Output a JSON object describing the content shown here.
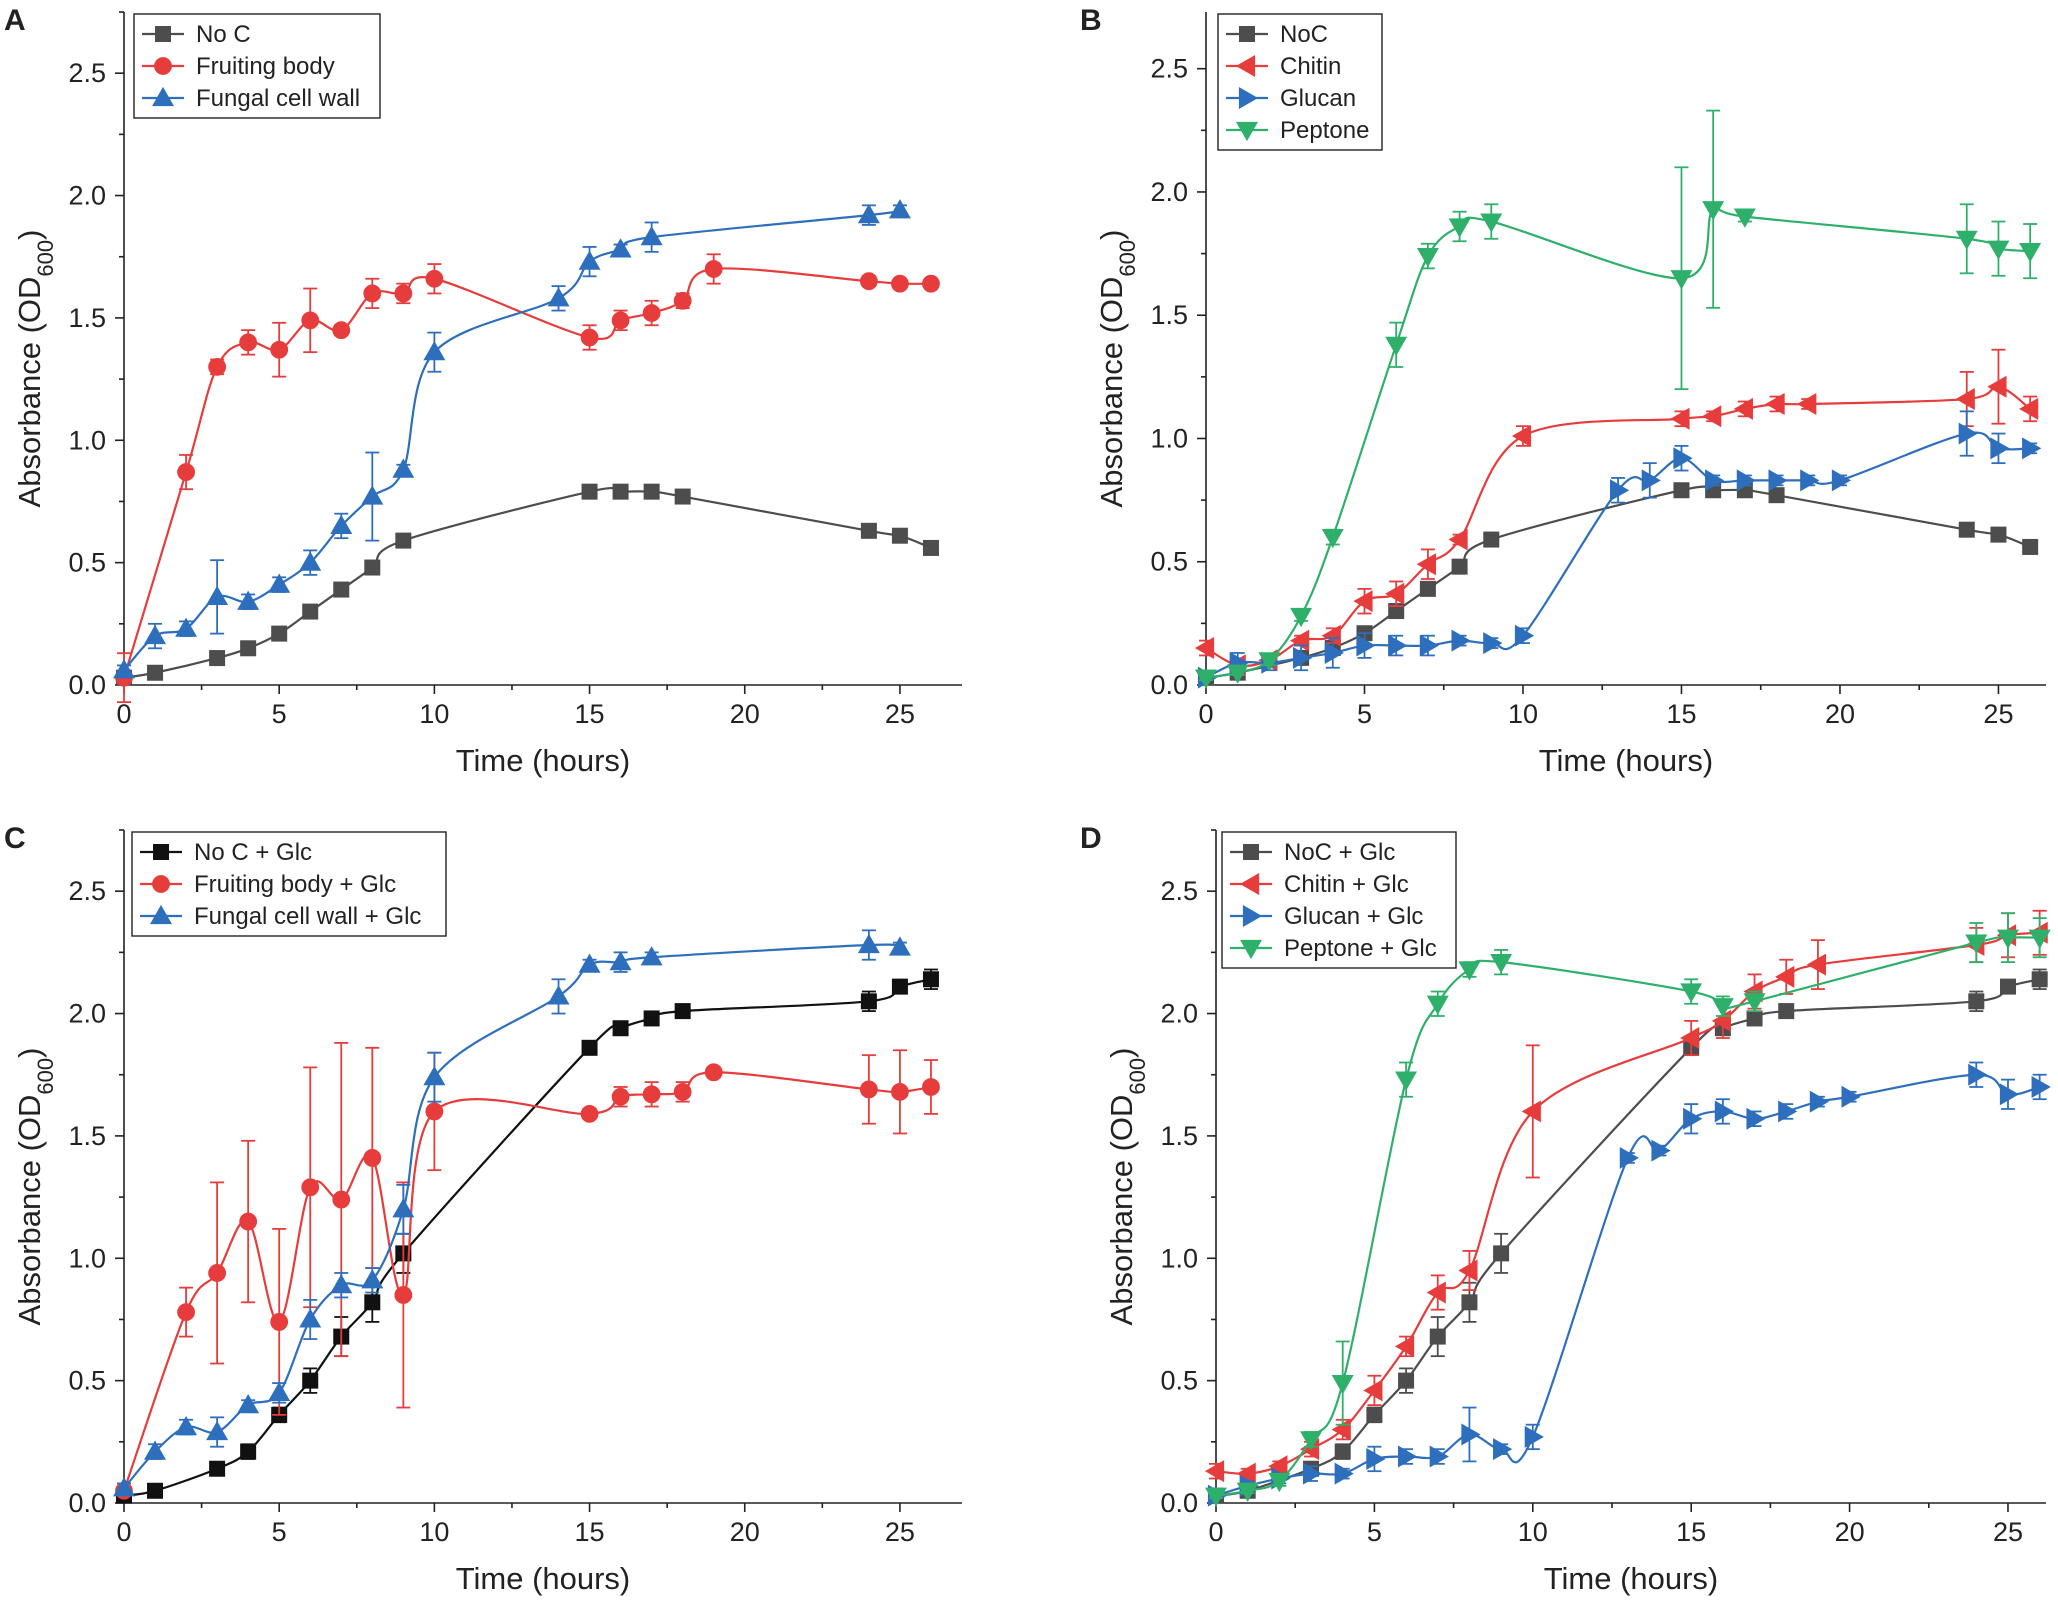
{
  "chart_data": [
    {
      "type": "line",
      "panel": "A",
      "xlabel": "Time (hours)",
      "ylabel": "Absorbance (OD",
      "ylabel_sub": "600",
      "ylabel_close": ")",
      "xlim": [
        0,
        27
      ],
      "ylim": [
        0,
        2.75
      ],
      "x_ticks": [
        0,
        5,
        10,
        15,
        20,
        25
      ],
      "y_ticks": [
        0.0,
        0.5,
        1.0,
        1.5,
        2.0,
        2.5
      ],
      "x_tick_labels": [
        "0",
        "5",
        "10",
        "15",
        "20",
        "25"
      ],
      "y_tick_labels": [
        "0.0",
        "0.5",
        "1.0",
        "1.5",
        "2.0",
        "2.5"
      ],
      "legend": [
        "No C",
        "Fruiting body",
        "Fungal cell wall"
      ],
      "series": [
        {
          "name": "No C",
          "color": "#4d4d4d",
          "marker": "square",
          "x": [
            0,
            1,
            3,
            4,
            5,
            6,
            7,
            8,
            9,
            15,
            16,
            17,
            18,
            24,
            25,
            26
          ],
          "y": [
            0.03,
            0.05,
            0.11,
            0.15,
            0.21,
            0.3,
            0.39,
            0.48,
            0.59,
            0.79,
            0.79,
            0.79,
            0.77,
            0.63,
            0.61,
            0.56
          ],
          "err": [
            0.01,
            0.01,
            0.01,
            0.01,
            0.01,
            0.01,
            0.01,
            0.01,
            0.01,
            0.01,
            0.01,
            0.01,
            0.01,
            0.01,
            0.01,
            0.01
          ]
        },
        {
          "name": "Fruiting body",
          "color": "#e63c3c",
          "marker": "circle",
          "x": [
            0,
            2,
            3,
            4,
            5,
            6,
            7,
            8,
            9,
            10,
            15,
            16,
            17,
            18,
            19,
            24,
            25,
            26
          ],
          "y": [
            0.03,
            0.87,
            1.3,
            1.4,
            1.37,
            1.49,
            1.45,
            1.6,
            1.6,
            1.66,
            1.42,
            1.49,
            1.52,
            1.57,
            1.7,
            1.65,
            1.64,
            1.64
          ],
          "err": [
            0.1,
            0.07,
            0.03,
            0.05,
            0.11,
            0.13,
            0.02,
            0.06,
            0.04,
            0.06,
            0.05,
            0.04,
            0.05,
            0.03,
            0.06,
            0.02,
            0.01,
            0.02
          ]
        },
        {
          "name": "Fungal cell wall",
          "color": "#2e6fbd",
          "marker": "triangle-up",
          "x": [
            0,
            1,
            2,
            3,
            4,
            5,
            6,
            7,
            8,
            9,
            10,
            14,
            15,
            16,
            17,
            24,
            25
          ],
          "y": [
            0.06,
            0.2,
            0.23,
            0.36,
            0.34,
            0.41,
            0.5,
            0.65,
            0.77,
            0.88,
            1.36,
            1.58,
            1.73,
            1.78,
            1.83,
            1.92,
            1.94
          ],
          "err": [
            0.02,
            0.05,
            0.03,
            0.15,
            0.03,
            0.03,
            0.05,
            0.05,
            0.18,
            0.02,
            0.08,
            0.05,
            0.06,
            0.02,
            0.06,
            0.04,
            0.02
          ]
        }
      ]
    },
    {
      "type": "line",
      "panel": "B",
      "xlabel": "Time (hours)",
      "ylabel": "Absorbance (OD",
      "ylabel_sub": "600",
      "ylabel_close": ")",
      "xlim": [
        0,
        26.5
      ],
      "ylim": [
        0,
        2.73
      ],
      "x_ticks": [
        0,
        5,
        10,
        15,
        20,
        25
      ],
      "y_ticks": [
        0.0,
        0.5,
        1.0,
        1.5,
        2.0,
        2.5
      ],
      "x_tick_labels": [
        "0",
        "5",
        "10",
        "15",
        "20",
        "25"
      ],
      "y_tick_labels": [
        "0.0",
        "0.5",
        "1.0",
        "1.5",
        "2.0",
        "2.5"
      ],
      "legend": [
        "NoC",
        "Chitin",
        "Glucan",
        "Peptone"
      ],
      "series": [
        {
          "name": "NoC",
          "color": "#4d4d4d",
          "marker": "square",
          "x": [
            0,
            1,
            3,
            4,
            5,
            6,
            7,
            8,
            9,
            15,
            16,
            17,
            18,
            24,
            25,
            26
          ],
          "y": [
            0.03,
            0.05,
            0.11,
            0.15,
            0.21,
            0.3,
            0.39,
            0.48,
            0.59,
            0.79,
            0.79,
            0.79,
            0.77,
            0.63,
            0.61,
            0.56
          ],
          "err": [
            0.01,
            0.01,
            0.01,
            0.01,
            0.01,
            0.01,
            0.01,
            0.01,
            0.01,
            0.01,
            0.01,
            0.01,
            0.01,
            0.01,
            0.01,
            0.01
          ]
        },
        {
          "name": "Chitin",
          "color": "#e63c3c",
          "marker": "triangle-left",
          "x": [
            0,
            1,
            2,
            3,
            4,
            5,
            6,
            7,
            8,
            10,
            15,
            16,
            17,
            18,
            19,
            24,
            25,
            26
          ],
          "y": [
            0.15,
            0.08,
            0.1,
            0.18,
            0.2,
            0.34,
            0.37,
            0.49,
            0.59,
            1.01,
            1.08,
            1.09,
            1.12,
            1.14,
            1.14,
            1.16,
            1.21,
            1.12
          ],
          "err": [
            0.03,
            0.02,
            0.02,
            0.02,
            0.03,
            0.05,
            0.05,
            0.06,
            0.02,
            0.04,
            0.03,
            0.02,
            0.03,
            0.03,
            0.02,
            0.11,
            0.15,
            0.05
          ]
        },
        {
          "name": "Glucan",
          "color": "#2e6fbd",
          "marker": "triangle-right",
          "x": [
            0,
            1,
            2,
            3,
            4,
            5,
            6,
            7,
            8,
            9,
            10,
            13,
            14,
            15,
            16,
            17,
            18,
            19,
            20,
            24,
            25,
            26
          ],
          "y": [
            0.03,
            0.09,
            0.09,
            0.11,
            0.13,
            0.16,
            0.16,
            0.16,
            0.18,
            0.17,
            0.2,
            0.79,
            0.83,
            0.92,
            0.83,
            0.83,
            0.83,
            0.83,
            0.83,
            1.02,
            0.96,
            0.96
          ],
          "err": [
            0.01,
            0.04,
            0.03,
            0.05,
            0.06,
            0.05,
            0.04,
            0.04,
            0.02,
            0.02,
            0.03,
            0.05,
            0.07,
            0.05,
            0.02,
            0.02,
            0.02,
            0.02,
            0.02,
            0.09,
            0.06,
            0.02
          ]
        },
        {
          "name": "Peptone",
          "color": "#2eb06a",
          "marker": "triangle-down",
          "x": [
            0,
            1,
            2,
            3,
            4,
            6,
            7,
            8,
            9,
            15,
            16,
            17,
            24,
            25,
            26
          ],
          "y": [
            0.03,
            0.05,
            0.1,
            0.28,
            0.6,
            1.38,
            1.74,
            1.86,
            1.88,
            1.65,
            1.93,
            1.9,
            1.81,
            1.77,
            1.76
          ],
          "err": [
            0.01,
            0.01,
            0.02,
            0.02,
            0.03,
            0.09,
            0.05,
            0.06,
            0.07,
            0.45,
            0.4,
            0.02,
            0.14,
            0.11,
            0.11
          ]
        }
      ]
    },
    {
      "type": "line",
      "panel": "C",
      "xlabel": "Time (hours)",
      "ylabel": "Absorbance (OD",
      "ylabel_sub": "600",
      "ylabel_close": ")",
      "xlim": [
        0,
        27
      ],
      "ylim": [
        0,
        2.75
      ],
      "x_ticks": [
        0,
        5,
        10,
        15,
        20,
        25
      ],
      "y_ticks": [
        0.0,
        0.5,
        1.0,
        1.5,
        2.0,
        2.5
      ],
      "x_tick_labels": [
        "0",
        "5",
        "10",
        "15",
        "20",
        "25"
      ],
      "y_tick_labels": [
        "0.0",
        "0.5",
        "1.0",
        "1.5",
        "2.0",
        "2.5"
      ],
      "legend": [
        "No C + Glc",
        "Fruiting body + Glc",
        "Fungal cell wall + Glc"
      ],
      "series": [
        {
          "name": "No C + Glc",
          "color": "#111111",
          "marker": "square",
          "x": [
            0,
            1,
            3,
            4,
            5,
            6,
            7,
            8,
            9,
            15,
            16,
            17,
            18,
            24,
            25,
            26
          ],
          "y": [
            0.03,
            0.05,
            0.14,
            0.21,
            0.36,
            0.5,
            0.68,
            0.82,
            1.02,
            1.86,
            1.94,
            1.98,
            2.01,
            2.05,
            2.11,
            2.14
          ],
          "err": [
            0.01,
            0.01,
            0.02,
            0.03,
            0.03,
            0.05,
            0.08,
            0.08,
            0.08,
            0.01,
            0.01,
            0.02,
            0.02,
            0.04,
            0.02,
            0.04
          ]
        },
        {
          "name": "Fruiting body + Glc",
          "color": "#e63c3c",
          "marker": "circle",
          "x": [
            0,
            2,
            3,
            4,
            5,
            6,
            7,
            8,
            9,
            10,
            15,
            16,
            17,
            18,
            19,
            24,
            25,
            26
          ],
          "y": [
            0.05,
            0.78,
            0.94,
            1.15,
            0.74,
            1.29,
            1.24,
            1.41,
            0.85,
            1.6,
            1.59,
            1.66,
            1.67,
            1.68,
            1.76,
            1.69,
            1.68,
            1.7
          ],
          "err": [
            0.02,
            0.1,
            0.37,
            0.33,
            0.38,
            0.49,
            0.64,
            0.45,
            0.46,
            0.24,
            0.02,
            0.04,
            0.05,
            0.04,
            0.02,
            0.14,
            0.17,
            0.11
          ]
        },
        {
          "name": "Fungal cell wall + Glc",
          "color": "#2e6fbd",
          "marker": "triangle-up",
          "x": [
            0,
            1,
            2,
            3,
            4,
            5,
            6,
            7,
            8,
            9,
            10,
            14,
            15,
            16,
            17,
            24,
            25
          ],
          "y": [
            0.06,
            0.21,
            0.31,
            0.29,
            0.4,
            0.45,
            0.75,
            0.89,
            0.91,
            1.2,
            1.74,
            2.07,
            2.2,
            2.21,
            2.23,
            2.28,
            2.27
          ],
          "err": [
            0.02,
            0.03,
            0.03,
            0.06,
            0.02,
            0.04,
            0.08,
            0.05,
            0.05,
            0.1,
            0.1,
            0.07,
            0.02,
            0.04,
            0.02,
            0.06,
            0.02
          ]
        }
      ]
    },
    {
      "type": "line",
      "panel": "D",
      "xlabel": "Time (hours)",
      "ylabel": "Absorbance (OD",
      "ylabel_sub": "600",
      "ylabel_close": ")",
      "xlim": [
        0,
        26.2
      ],
      "ylim": [
        0,
        2.75
      ],
      "x_ticks": [
        0,
        5,
        10,
        15,
        20,
        25
      ],
      "y_ticks": [
        0.0,
        0.5,
        1.0,
        1.5,
        2.0,
        2.5
      ],
      "x_tick_labels": [
        "0",
        "5",
        "10",
        "15",
        "20",
        "25"
      ],
      "y_tick_labels": [
        "0.0",
        "0.5",
        "1.0",
        "1.5",
        "2.0",
        "2.5"
      ],
      "legend": [
        "NoC + Glc",
        "Chitin + Glc",
        "Glucan + Glc",
        "Peptone + Glc"
      ],
      "series": [
        {
          "name": "NoC + Glc",
          "color": "#4d4d4d",
          "marker": "square",
          "x": [
            0,
            1,
            3,
            4,
            5,
            6,
            7,
            8,
            9,
            15,
            16,
            17,
            18,
            24,
            25,
            26
          ],
          "y": [
            0.03,
            0.05,
            0.14,
            0.21,
            0.36,
            0.5,
            0.68,
            0.82,
            1.02,
            1.86,
            1.94,
            1.98,
            2.01,
            2.05,
            2.11,
            2.14
          ],
          "err": [
            0.01,
            0.01,
            0.02,
            0.03,
            0.03,
            0.05,
            0.08,
            0.08,
            0.08,
            0.01,
            0.01,
            0.02,
            0.02,
            0.04,
            0.02,
            0.04
          ]
        },
        {
          "name": "Chitin + Glc",
          "color": "#e63c3c",
          "marker": "triangle-left",
          "x": [
            0,
            1,
            2,
            3,
            4,
            5,
            6,
            7,
            8,
            10,
            15,
            16,
            17,
            18,
            19,
            24,
            25,
            26
          ],
          "y": [
            0.13,
            0.12,
            0.15,
            0.22,
            0.3,
            0.46,
            0.64,
            0.86,
            0.95,
            1.6,
            1.9,
            1.97,
            2.09,
            2.15,
            2.2,
            2.28,
            2.32,
            2.33
          ],
          "err": [
            0.03,
            0.02,
            0.02,
            0.03,
            0.04,
            0.06,
            0.04,
            0.07,
            0.08,
            0.27,
            0.07,
            0.07,
            0.07,
            0.07,
            0.1,
            0.07,
            0.09,
            0.09
          ]
        },
        {
          "name": "Glucan + Glc",
          "color": "#2e6fbd",
          "marker": "triangle-right",
          "x": [
            0,
            1,
            2,
            3,
            4,
            5,
            6,
            7,
            8,
            9,
            10,
            13,
            14,
            15,
            16,
            17,
            18,
            19,
            20,
            24,
            25,
            26
          ],
          "y": [
            0.03,
            0.07,
            0.1,
            0.12,
            0.12,
            0.18,
            0.19,
            0.19,
            0.28,
            0.22,
            0.27,
            1.41,
            1.44,
            1.57,
            1.6,
            1.57,
            1.6,
            1.64,
            1.66,
            1.75,
            1.67,
            1.7
          ],
          "err": [
            0.01,
            0.02,
            0.02,
            0.03,
            0.02,
            0.05,
            0.03,
            0.03,
            0.11,
            0.02,
            0.05,
            0.02,
            0.02,
            0.06,
            0.05,
            0.03,
            0.03,
            0.02,
            0.02,
            0.05,
            0.06,
            0.05
          ]
        },
        {
          "name": "Peptone + Glc",
          "color": "#2eb06a",
          "marker": "triangle-down",
          "x": [
            0,
            1,
            2,
            3,
            4,
            6,
            7,
            8,
            9,
            15,
            16,
            17,
            24,
            25,
            26
          ],
          "y": [
            0.03,
            0.05,
            0.09,
            0.26,
            0.49,
            1.73,
            2.04,
            2.18,
            2.21,
            2.09,
            2.03,
            2.05,
            2.29,
            2.31,
            2.31
          ],
          "err": [
            0.01,
            0.01,
            0.02,
            0.03,
            0.17,
            0.07,
            0.05,
            0.03,
            0.05,
            0.05,
            0.04,
            0.04,
            0.08,
            0.1,
            0.08
          ]
        }
      ]
    }
  ]
}
